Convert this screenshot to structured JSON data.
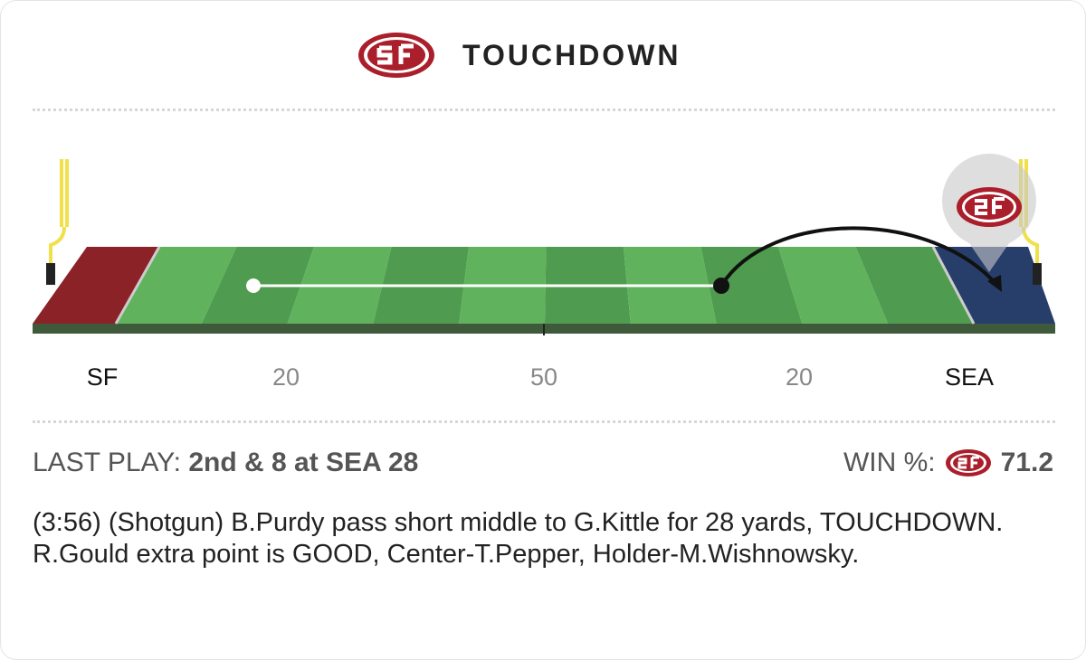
{
  "header": {
    "title": "TOUCHDOWN"
  },
  "field": {
    "labels": [
      "SF",
      "20",
      "50",
      "20",
      "SEA"
    ]
  },
  "last_play": {
    "label": "LAST PLAY:",
    "value": "2nd & 8 at SEA 28"
  },
  "win": {
    "label": "WIN %:",
    "value": "71.2"
  },
  "description": "(3:56) (Shotgun) B.Purdy pass short middle to G.Kittle for 28 yards, TOUCHDOWN. R.Gould extra point is GOOD, Center-T.Pepper, Holder-M.Wishnowsky."
}
